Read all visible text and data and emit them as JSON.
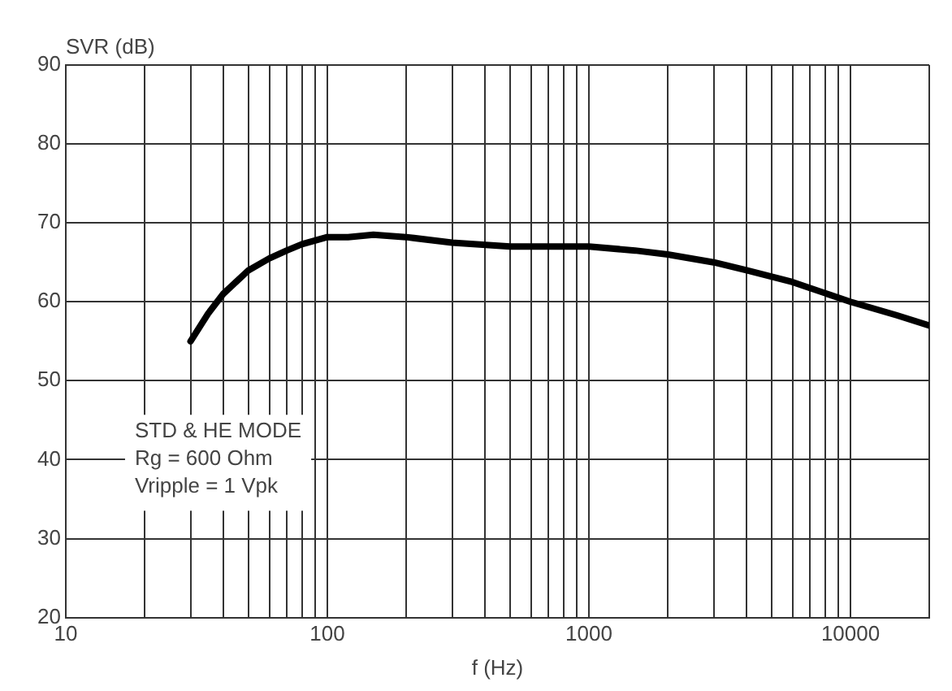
{
  "chart_data": {
    "type": "line",
    "ylabel": "SVR (dB)",
    "xlabel": "f (Hz)",
    "log": "x",
    "x": [
      30,
      35,
      40,
      50,
      60,
      70,
      80,
      100,
      120,
      150,
      200,
      300,
      500,
      700,
      1000,
      1500,
      2000,
      3000,
      4000,
      6000,
      10000,
      15000,
      20000
    ],
    "series": [
      {
        "color": "#000000",
        "values": [
          55,
          58.5,
          61,
          64,
          65.5,
          66.5,
          67.3,
          68.2,
          68.2,
          68.5,
          68.2,
          67.5,
          67,
          67,
          67,
          66.5,
          66,
          65,
          64,
          62.5,
          60,
          58.3,
          57
        ]
      }
    ],
    "xlim": [
      10,
      20000
    ],
    "ylim": [
      20,
      90
    ],
    "xticks": [
      10,
      {
        "value": 20,
        "label": null
      },
      {
        "value": 30,
        "label": null
      },
      {
        "value": 40,
        "label": null
      },
      {
        "value": 50,
        "label": null
      },
      {
        "value": 60,
        "label": null
      },
      {
        "value": 70,
        "label": null
      },
      {
        "value": 80,
        "label": null
      },
      {
        "value": 90,
        "label": null
      },
      100,
      {
        "value": 200,
        "label": null
      },
      {
        "value": 300,
        "label": null
      },
      {
        "value": 400,
        "label": null
      },
      {
        "value": 500,
        "label": null
      },
      {
        "value": 600,
        "label": null
      },
      {
        "value": 700,
        "label": null
      },
      {
        "value": 800,
        "label": null
      },
      {
        "value": 900,
        "label": null
      },
      1000,
      {
        "value": 2000,
        "label": null
      },
      {
        "value": 3000,
        "label": null
      },
      {
        "value": 4000,
        "label": null
      },
      {
        "value": 5000,
        "label": null
      },
      {
        "value": 6000,
        "label": null
      },
      {
        "value": 7000,
        "label": null
      },
      {
        "value": 8000,
        "label": null
      },
      {
        "value": 9000,
        "label": null
      },
      10000,
      {
        "value": 20000,
        "label": null
      }
    ],
    "yticks": [
      20,
      30,
      40,
      50,
      60,
      70,
      80,
      90
    ],
    "grid": true,
    "legend": false,
    "marker": "none",
    "line_style": "solid",
    "annotations": [
      "STD & HE MODE\nRg = 600 Ohm\nVripple = 1 Vpk"
    ]
  }
}
